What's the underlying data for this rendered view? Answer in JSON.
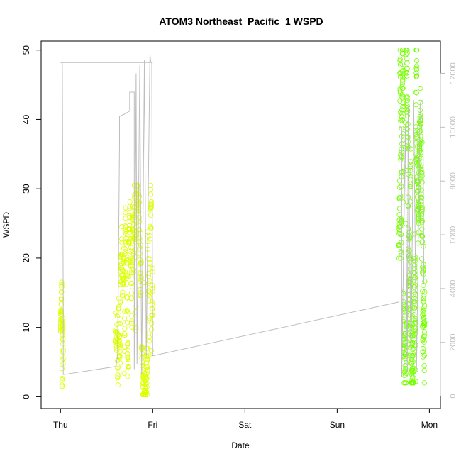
{
  "chart_data": {
    "type": "scatter",
    "title": "ATOM3 Northeast_Pacific_1 WSPD",
    "xlabel": "Date",
    "ylabel": "WSPD",
    "x_tick_labels": [
      "Thu",
      "Fri",
      "Sat",
      "Sun",
      "Mon"
    ],
    "x_ticks_days": [
      0,
      1,
      2,
      3,
      4
    ],
    "xlim_days": [
      -0.21,
      4.12
    ],
    "ylim": [
      -1.7,
      51.3
    ],
    "y_ticks": [
      0,
      10,
      20,
      30,
      40,
      50
    ],
    "y2lim": [
      -460,
      13200
    ],
    "y2_ticks": [
      0,
      2000,
      4000,
      6000,
      8000,
      10000,
      12000
    ],
    "grid": false,
    "colors": {
      "early_points": "#ddff00",
      "late_points": "#77ff00",
      "secondary_line": "#bebebe",
      "frame": "#000000"
    },
    "series": [
      {
        "values_desc": "WSPD observations",
        "segments": [
          {
            "x_start": 0.0,
            "x_end": 0.03,
            "y_min": 1.5,
            "y_max": 16.5,
            "mean": 9
          },
          {
            "x_start": 0.6,
            "x_end": 1.0,
            "y_min": 0.3,
            "y_max": 30.5,
            "mean": 7
          },
          {
            "x_start": 3.67,
            "x_end": 3.95,
            "y_min": 2.0,
            "y_max": 50.0,
            "mean": 22
          }
        ]
      },
      {
        "values_desc": "secondary right-axis line",
        "points": [
          [
            0.0,
            12400
          ],
          [
            0.005,
            12400
          ],
          [
            0.02,
            12400
          ],
          [
            0.03,
            3200
          ],
          [
            0.03,
            800
          ],
          [
            0.6,
            1100
          ],
          [
            0.62,
            1500
          ],
          [
            0.64,
            9500
          ],
          [
            0.64,
            10400
          ],
          [
            0.7,
            10500
          ],
          [
            0.75,
            10600
          ],
          [
            0.75,
            11300
          ],
          [
            0.8,
            11300
          ],
          [
            0.8,
            1000
          ],
          [
            0.82,
            12000
          ],
          [
            0.83,
            1200
          ],
          [
            0.86,
            12300
          ],
          [
            0.88,
            800
          ],
          [
            0.91,
            12500
          ],
          [
            0.93,
            1500
          ],
          [
            0.97,
            12700
          ],
          [
            0.98,
            12400
          ],
          [
            1.0,
            12400
          ],
          [
            0.02,
            12400
          ],
          [
            0.99,
            12400
          ],
          [
            1.0,
            1500
          ],
          [
            3.67,
            3500
          ],
          [
            3.67,
            10000
          ],
          [
            3.7,
            10000
          ],
          [
            3.7,
            700
          ],
          [
            3.74,
            10100
          ],
          [
            3.76,
            900
          ],
          [
            3.77,
            10800
          ],
          [
            3.8,
            1200
          ],
          [
            3.83,
            11000
          ],
          [
            3.86,
            900
          ],
          [
            3.9,
            10900
          ],
          [
            3.93,
            11000
          ],
          [
            3.94,
            4200
          ]
        ]
      }
    ]
  }
}
